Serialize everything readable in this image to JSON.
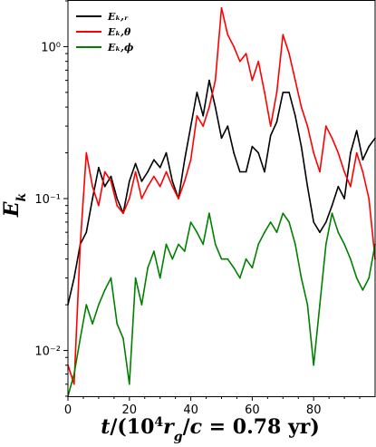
{
  "chart_data": {
    "type": "line",
    "xlabel": "t/(10⁴r_g/c = 0.78 yr)",
    "ylabel": "E_k",
    "xlim": [
      0,
      100
    ],
    "ylim": [
      0.005,
      2.0
    ],
    "yscale": "log",
    "grid": false,
    "legend_position": "top-left",
    "x_ticks": [
      {
        "value": 0,
        "label": "0"
      },
      {
        "value": 20,
        "label": "20"
      },
      {
        "value": 40,
        "label": "40"
      },
      {
        "value": 60,
        "label": "60"
      },
      {
        "value": 80,
        "label": "80"
      }
    ],
    "y_ticks": [
      {
        "value": 0.01,
        "label": "10⁻²"
      },
      {
        "value": 0.1,
        "label": "10⁻¹"
      },
      {
        "value": 1,
        "label": "10⁰"
      }
    ],
    "series": [
      {
        "name": "E_{k,r}",
        "legend_label": "Eₖ,ᵣ",
        "color": "#000000",
        "x": [
          0,
          2,
          4,
          6,
          8,
          10,
          12,
          14,
          16,
          18,
          20,
          22,
          24,
          26,
          28,
          30,
          32,
          34,
          36,
          38,
          40,
          42,
          44,
          46,
          48,
          50,
          52,
          54,
          56,
          58,
          60,
          62,
          64,
          66,
          68,
          70,
          72,
          74,
          76,
          78,
          80,
          82,
          84,
          86,
          88,
          90,
          92,
          94,
          96,
          98,
          100
        ],
        "y": [
          0.02,
          0.03,
          0.05,
          0.06,
          0.1,
          0.16,
          0.12,
          0.14,
          0.1,
          0.08,
          0.13,
          0.17,
          0.13,
          0.15,
          0.18,
          0.16,
          0.2,
          0.13,
          0.1,
          0.18,
          0.3,
          0.5,
          0.35,
          0.6,
          0.4,
          0.25,
          0.3,
          0.2,
          0.15,
          0.15,
          0.22,
          0.2,
          0.15,
          0.26,
          0.32,
          0.5,
          0.5,
          0.35,
          0.22,
          0.12,
          0.07,
          0.06,
          0.07,
          0.09,
          0.12,
          0.1,
          0.2,
          0.28,
          0.18,
          0.22,
          0.25
        ]
      },
      {
        "name": "E_{k,θ}",
        "legend_label": "Eₖ,θ",
        "color": "#ff0000",
        "x": [
          0,
          2,
          4,
          6,
          8,
          10,
          12,
          14,
          16,
          18,
          20,
          22,
          24,
          26,
          28,
          30,
          32,
          34,
          36,
          38,
          40,
          42,
          44,
          46,
          48,
          50,
          52,
          54,
          56,
          58,
          60,
          62,
          64,
          66,
          68,
          70,
          72,
          74,
          76,
          78,
          80,
          82,
          84,
          86,
          88,
          90,
          92,
          94,
          96,
          98,
          100
        ],
        "y": [
          0.008,
          0.006,
          0.05,
          0.2,
          0.12,
          0.09,
          0.15,
          0.13,
          0.09,
          0.08,
          0.1,
          0.15,
          0.1,
          0.12,
          0.14,
          0.12,
          0.15,
          0.12,
          0.1,
          0.13,
          0.18,
          0.35,
          0.3,
          0.4,
          0.6,
          1.8,
          1.2,
          1.0,
          0.8,
          0.9,
          0.6,
          0.8,
          0.5,
          0.3,
          0.5,
          1.2,
          0.9,
          0.6,
          0.4,
          0.3,
          0.2,
          0.15,
          0.3,
          0.25,
          0.2,
          0.15,
          0.12,
          0.2,
          0.15,
          0.1,
          0.04
        ]
      },
      {
        "name": "E_{k,ϕ}",
        "legend_label": "Eₖ,ϕ",
        "color": "#008000",
        "x": [
          0,
          2,
          4,
          6,
          8,
          10,
          12,
          14,
          16,
          18,
          20,
          22,
          24,
          26,
          28,
          30,
          32,
          34,
          36,
          38,
          40,
          42,
          44,
          46,
          48,
          50,
          52,
          54,
          56,
          58,
          60,
          62,
          64,
          66,
          68,
          70,
          72,
          74,
          76,
          78,
          80,
          82,
          84,
          86,
          88,
          90,
          92,
          94,
          96,
          98,
          100
        ],
        "y": [
          0.005,
          0.007,
          0.012,
          0.02,
          0.015,
          0.02,
          0.025,
          0.03,
          0.015,
          0.012,
          0.006,
          0.03,
          0.02,
          0.035,
          0.045,
          0.03,
          0.05,
          0.04,
          0.05,
          0.045,
          0.07,
          0.06,
          0.05,
          0.08,
          0.05,
          0.04,
          0.04,
          0.035,
          0.03,
          0.04,
          0.035,
          0.05,
          0.06,
          0.07,
          0.06,
          0.08,
          0.07,
          0.05,
          0.03,
          0.02,
          0.008,
          0.02,
          0.05,
          0.08,
          0.06,
          0.05,
          0.04,
          0.03,
          0.025,
          0.03,
          0.05
        ]
      }
    ]
  }
}
